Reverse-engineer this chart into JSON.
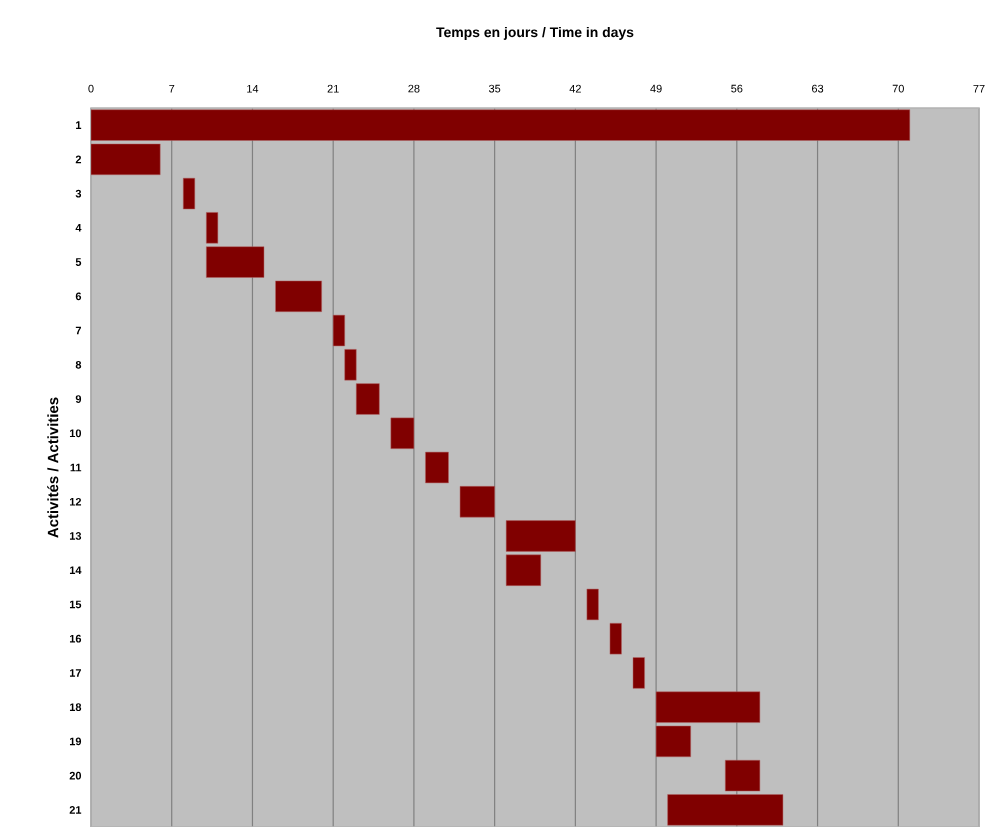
{
  "chart_data": {
    "type": "bar",
    "orientation": "horizontal",
    "xlabel": "Temps en jours / Time in days",
    "ylabel": "Activités / Activities",
    "categories": [
      "1",
      "2",
      "3",
      "4",
      "5",
      "6",
      "7",
      "8",
      "9",
      "10",
      "11",
      "12",
      "13",
      "14",
      "15",
      "16",
      "17",
      "18",
      "19",
      "20",
      "21"
    ],
    "base": [
      0,
      0,
      8,
      10,
      10,
      16,
      21,
      22,
      23,
      26,
      29,
      32,
      36,
      36,
      43,
      45,
      47,
      49,
      49,
      55,
      50
    ],
    "values": [
      71,
      6,
      1,
      1,
      5,
      4,
      1,
      1,
      2,
      2,
      2,
      3,
      6,
      3,
      1,
      1,
      1,
      9,
      3,
      3,
      10
    ],
    "color": "#800000",
    "xlim": [
      0,
      77
    ],
    "xticks": [
      0,
      7,
      14,
      21,
      28,
      35,
      42,
      49,
      56,
      63,
      70,
      77
    ],
    "grid": "x"
  }
}
